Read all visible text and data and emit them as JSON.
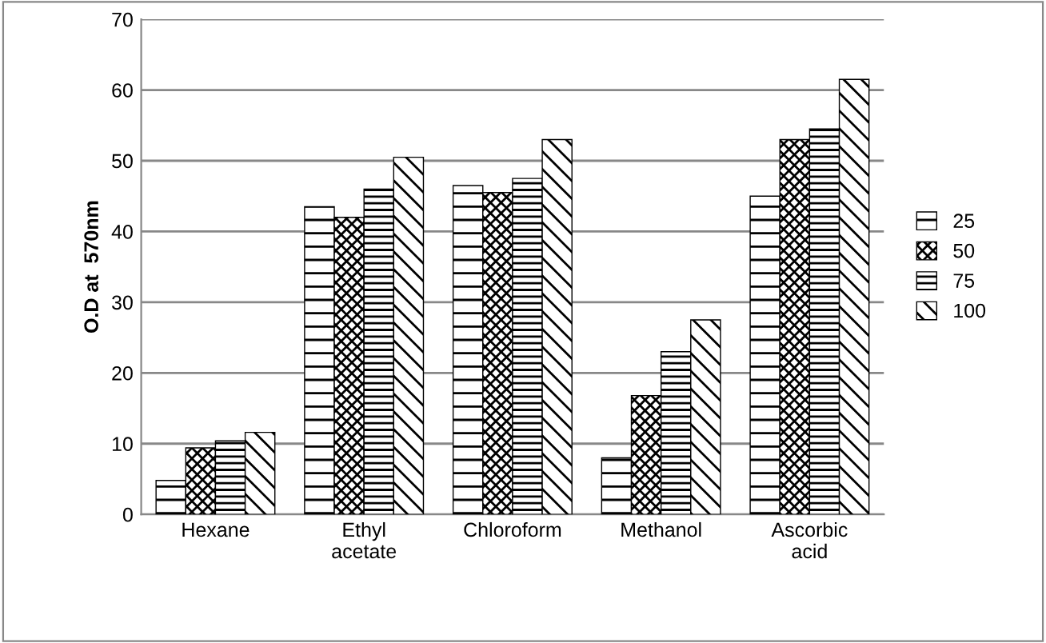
{
  "chart_data": {
    "type": "bar",
    "ylabel": "O.D at  570nm",
    "categories": [
      "Hexane",
      "Ethyl acetate",
      "Chloroform",
      "Methanol",
      "Ascorbic acid"
    ],
    "series": [
      {
        "name": "25",
        "color": "#000000",
        "values": [
          4.8,
          43.5,
          46.5,
          8,
          45
        ]
      },
      {
        "name": "50",
        "color": "#000000",
        "values": [
          9.4,
          42,
          45.5,
          16.8,
          53
        ]
      },
      {
        "name": "75",
        "color": "#000000",
        "values": [
          10.4,
          46,
          47.5,
          23,
          54.5
        ]
      },
      {
        "name": "100",
        "color": "#000000",
        "values": [
          11.6,
          50.5,
          53,
          27.5,
          61.5
        ]
      }
    ],
    "ylim": [
      0,
      70
    ],
    "yticks": [
      0,
      10,
      20,
      30,
      40,
      50,
      60,
      70
    ],
    "grid": "y",
    "legend": "right"
  }
}
